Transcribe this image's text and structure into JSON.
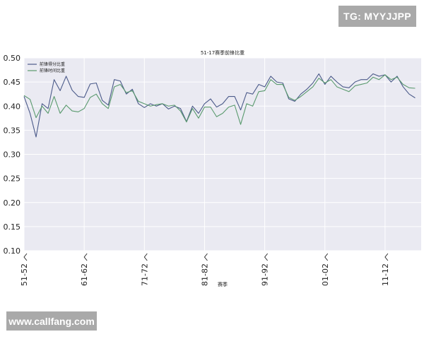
{
  "watermarks": {
    "top_right": "TG: MYYJJPP",
    "bottom_left": "www.callfang.com"
  },
  "colors": {
    "plot_bg": "#eaeaf2",
    "grid": "#ffffff",
    "series1": "#4c5b8a",
    "series2": "#5a9a6e"
  },
  "chart_data": {
    "type": "line",
    "title": "51-17赛季前锋比重",
    "xlabel": "赛季",
    "ylabel": "",
    "ylim": [
      0.1,
      0.5
    ],
    "yticks": [
      "0.10",
      "0.15",
      "0.20",
      "0.25",
      "0.30",
      "0.35",
      "0.40",
      "0.45",
      "0.50"
    ],
    "x_range": [
      0,
      66
    ],
    "xtick_positions": [
      0,
      10,
      20,
      30,
      40,
      50,
      60
    ],
    "xtick_labels": [
      "51-52",
      "61-62",
      "71-72",
      "81-82",
      "91-92",
      "01-02",
      "11-12"
    ],
    "legend_location": "upper-left",
    "series": [
      {
        "name": "前锋得分比重",
        "values": [
          0.42,
          0.385,
          0.336,
          0.405,
          0.395,
          0.455,
          0.432,
          0.462,
          0.433,
          0.42,
          0.418,
          0.446,
          0.448,
          0.412,
          0.402,
          0.455,
          0.452,
          0.425,
          0.435,
          0.405,
          0.397,
          0.405,
          0.4,
          0.405,
          0.394,
          0.4,
          0.395,
          0.368,
          0.4,
          0.385,
          0.405,
          0.415,
          0.398,
          0.405,
          0.42,
          0.42,
          0.392,
          0.428,
          0.425,
          0.445,
          0.44,
          0.462,
          0.45,
          0.448,
          0.415,
          0.41,
          0.425,
          0.435,
          0.448,
          0.467,
          0.445,
          0.462,
          0.45,
          0.44,
          0.438,
          0.45,
          0.455,
          0.455,
          0.467,
          0.462,
          0.465,
          0.45,
          0.462,
          0.44,
          0.425,
          0.417
        ]
      },
      {
        "name": "前锋时间比重",
        "values": [
          0.422,
          0.414,
          0.376,
          0.4,
          0.385,
          0.42,
          0.385,
          0.402,
          0.39,
          0.388,
          0.395,
          0.418,
          0.425,
          0.405,
          0.395,
          0.44,
          0.445,
          0.428,
          0.432,
          0.41,
          0.405,
          0.4,
          0.403,
          0.405,
          0.4,
          0.402,
          0.39,
          0.367,
          0.395,
          0.375,
          0.398,
          0.398,
          0.378,
          0.385,
          0.398,
          0.402,
          0.362,
          0.405,
          0.4,
          0.43,
          0.432,
          0.455,
          0.445,
          0.445,
          0.418,
          0.412,
          0.42,
          0.43,
          0.44,
          0.458,
          0.448,
          0.455,
          0.44,
          0.435,
          0.43,
          0.442,
          0.445,
          0.448,
          0.46,
          0.455,
          0.465,
          0.455,
          0.46,
          0.445,
          0.438,
          0.437
        ]
      }
    ]
  }
}
